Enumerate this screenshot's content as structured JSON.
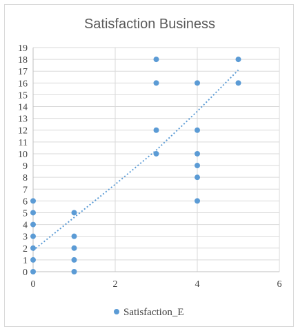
{
  "chart_data": {
    "type": "scatter",
    "title": "Satisfaction Business",
    "xlim": [
      0,
      6
    ],
    "ylim": [
      0,
      19
    ],
    "x_ticks": [
      0,
      2,
      4,
      6
    ],
    "y_ticks": [
      0,
      1,
      2,
      3,
      4,
      5,
      6,
      7,
      8,
      9,
      10,
      11,
      12,
      13,
      14,
      15,
      16,
      17,
      18,
      19
    ],
    "grid": "horizontal and vertical",
    "legend_position": "bottom",
    "series": [
      {
        "name": "Satisfaction_E",
        "color": "#5b9bd5",
        "points": [
          [
            0,
            0
          ],
          [
            0,
            1
          ],
          [
            0,
            2
          ],
          [
            0,
            3
          ],
          [
            0,
            4
          ],
          [
            0,
            5
          ],
          [
            0,
            6
          ],
          [
            1,
            0
          ],
          [
            1,
            1
          ],
          [
            1,
            2
          ],
          [
            1,
            3
          ],
          [
            1,
            5
          ],
          [
            3,
            10
          ],
          [
            3,
            12
          ],
          [
            3,
            16
          ],
          [
            3,
            18
          ],
          [
            4,
            6
          ],
          [
            4,
            8
          ],
          [
            4,
            9
          ],
          [
            4,
            10
          ],
          [
            4,
            12
          ],
          [
            4,
            16
          ],
          [
            5,
            16
          ],
          [
            5,
            18
          ]
        ]
      }
    ],
    "trendline": {
      "type": "polynomial",
      "color": "#5b9bd5",
      "points": [
        [
          0,
          1.8
        ],
        [
          2,
          7.4
        ],
        [
          3,
          10.3
        ],
        [
          4,
          13.6
        ],
        [
          5,
          17.1
        ]
      ]
    }
  }
}
